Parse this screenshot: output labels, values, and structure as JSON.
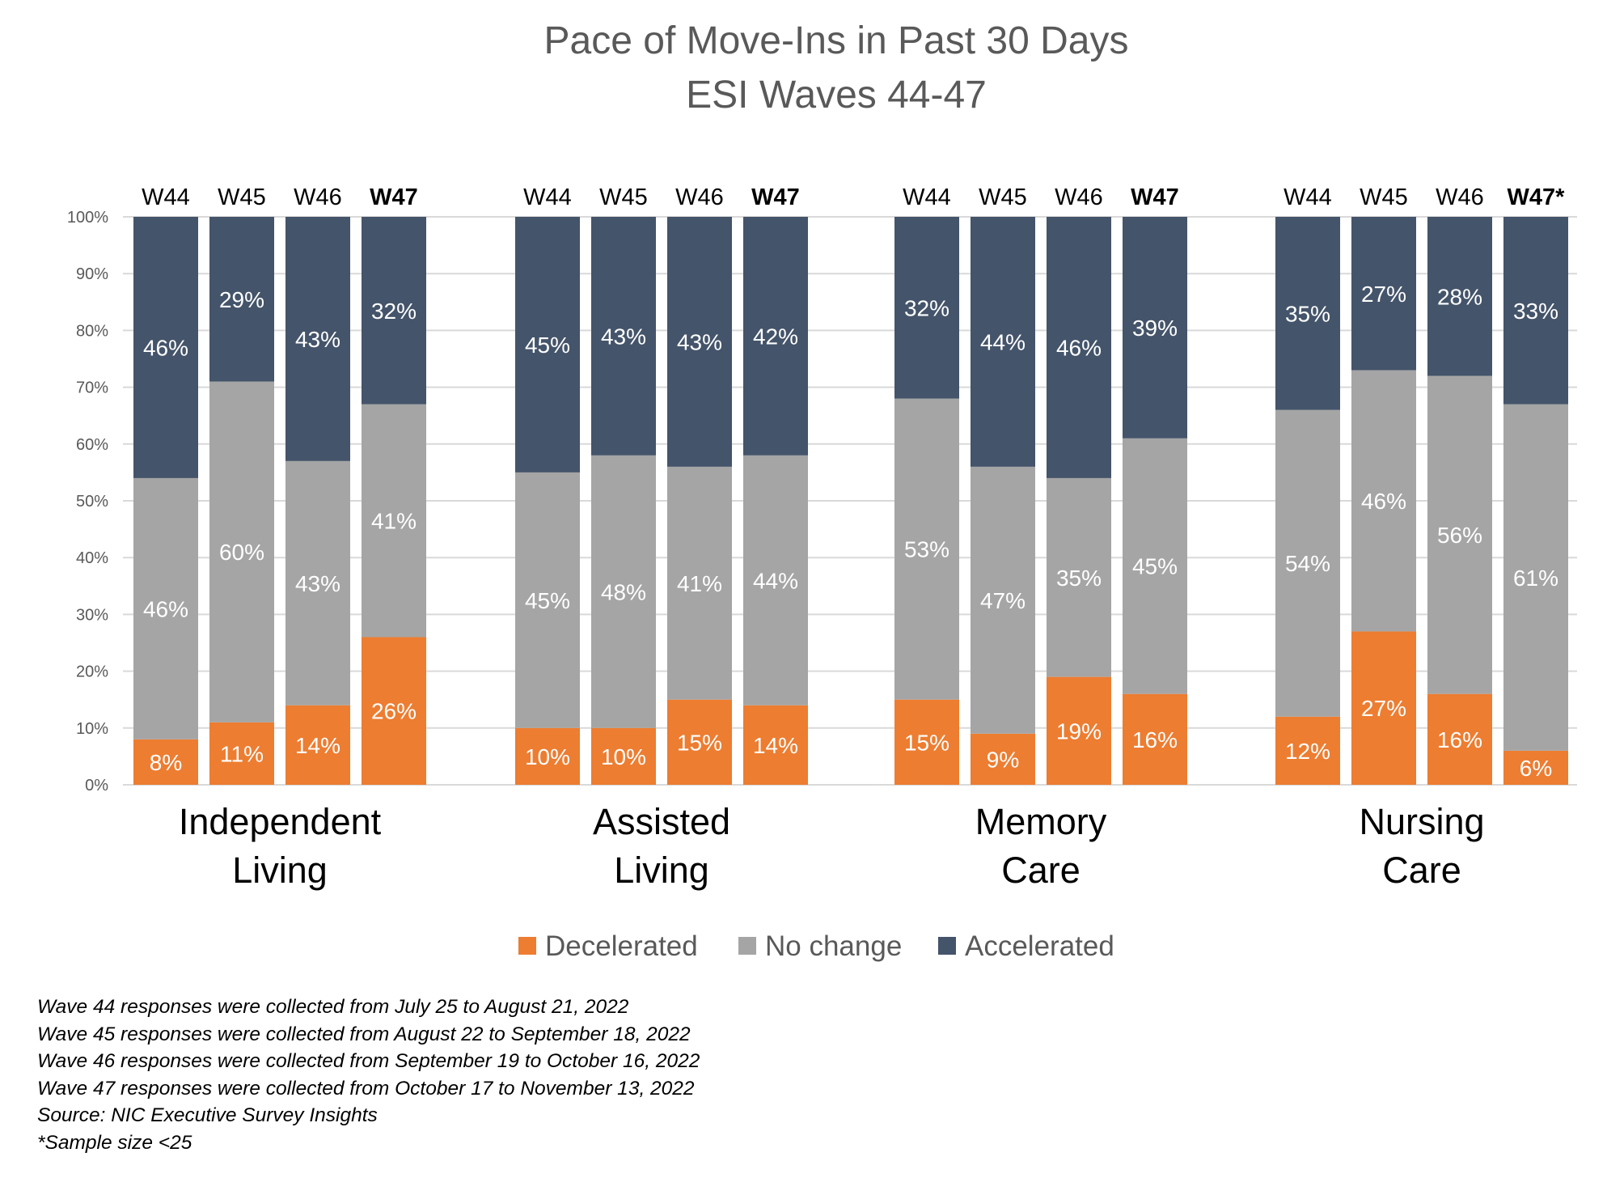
{
  "chart_data": {
    "type": "bar",
    "stacked": true,
    "percent": true,
    "title": "Pace of Move-Ins in Past 30 Days",
    "subtitle": "ESI Waves 44-47",
    "yticks": [
      "0%",
      "10%",
      "20%",
      "30%",
      "40%",
      "50%",
      "60%",
      "70%",
      "80%",
      "90%",
      "100%"
    ],
    "ylim": [
      0,
      100
    ],
    "grid": true,
    "legend_position": "bottom",
    "colors": {
      "Decelerated": "#ED7D31",
      "No change": "#A5A5A5",
      "Accelerated": "#44546A",
      "latest_wave_label": "#70AD47",
      "grid": "#D9D9D9"
    },
    "series_names": [
      "Decelerated",
      "No change",
      "Accelerated"
    ],
    "groups": [
      {
        "label_lines": [
          "Independent",
          "Living"
        ],
        "bars": [
          {
            "wave": "W44",
            "highlight": false,
            "values": [
              8,
              46,
              46
            ],
            "labels": [
              "8%",
              "46%",
              "46%"
            ]
          },
          {
            "wave": "W45",
            "highlight": false,
            "values": [
              11,
              60,
              29
            ],
            "labels": [
              "11%",
              "60%",
              "29%"
            ]
          },
          {
            "wave": "W46",
            "highlight": false,
            "values": [
              14,
              43,
              43
            ],
            "labels": [
              "14%",
              "43%",
              "43%"
            ]
          },
          {
            "wave": "W47",
            "highlight": true,
            "values": [
              26,
              41,
              32
            ],
            "labels": [
              "26%",
              "41%",
              "32%"
            ]
          }
        ]
      },
      {
        "label_lines": [
          "Assisted",
          "Living"
        ],
        "bars": [
          {
            "wave": "W44",
            "highlight": false,
            "values": [
              10,
              45,
              45
            ],
            "labels": [
              "10%",
              "45%",
              "45%"
            ]
          },
          {
            "wave": "W45",
            "highlight": false,
            "values": [
              10,
              48,
              43
            ],
            "labels": [
              "10%",
              "48%",
              "43%"
            ]
          },
          {
            "wave": "W46",
            "highlight": false,
            "values": [
              15,
              41,
              43
            ],
            "labels": [
              "15%",
              "41%",
              "43%"
            ]
          },
          {
            "wave": "W47",
            "highlight": true,
            "values": [
              14,
              44,
              42
            ],
            "labels": [
              "14%",
              "44%",
              "42%"
            ]
          }
        ]
      },
      {
        "label_lines": [
          "Memory",
          "Care"
        ],
        "bars": [
          {
            "wave": "W44",
            "highlight": false,
            "values": [
              15,
              53,
              32
            ],
            "labels": [
              "15%",
              "53%",
              "32%"
            ]
          },
          {
            "wave": "W45",
            "highlight": false,
            "values": [
              9,
              47,
              44
            ],
            "labels": [
              "9%",
              "47%",
              "44%"
            ]
          },
          {
            "wave": "W46",
            "highlight": false,
            "values": [
              19,
              35,
              46
            ],
            "labels": [
              "19%",
              "35%",
              "46%"
            ]
          },
          {
            "wave": "W47",
            "highlight": true,
            "values": [
              16,
              45,
              39
            ],
            "labels": [
              "16%",
              "45%",
              "39%"
            ]
          }
        ]
      },
      {
        "label_lines": [
          "Nursing",
          "Care"
        ],
        "bars": [
          {
            "wave": "W44",
            "highlight": false,
            "values": [
              12,
              54,
              35
            ],
            "labels": [
              "12%",
              "54%",
              "35%"
            ]
          },
          {
            "wave": "W45",
            "highlight": false,
            "values": [
              27,
              46,
              27
            ],
            "labels": [
              "27%",
              "46%",
              "27%"
            ]
          },
          {
            "wave": "W46",
            "highlight": false,
            "values": [
              16,
              56,
              28
            ],
            "labels": [
              "16%",
              "56%",
              "28%"
            ]
          },
          {
            "wave": "W47*",
            "highlight": true,
            "values": [
              6,
              61,
              33
            ],
            "labels": [
              "6%",
              "61%",
              "33%"
            ]
          }
        ]
      }
    ]
  },
  "notes": [
    "Wave 44 responses were collected from July 25 to August 21, 2022",
    "Wave 45 responses were collected from August 22 to September 18, 2022",
    "Wave 46 responses were collected from September 19 to October 16, 2022",
    "Wave 47 responses were collected from October 17 to November 13, 2022",
    "Source: NIC Executive Survey Insights",
    "*Sample size <25"
  ]
}
